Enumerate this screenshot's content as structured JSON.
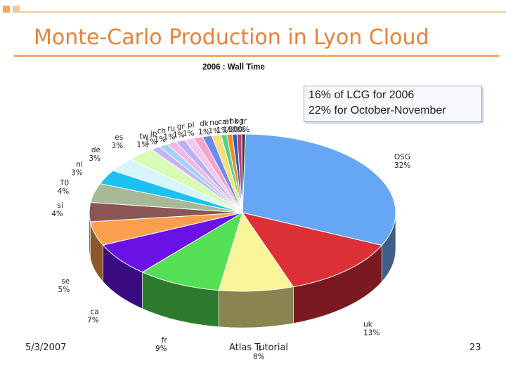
{
  "slide": {
    "title": "Monte-Carlo Production in Lyon Cloud",
    "callout_lines": [
      "16% of LCG for 2006",
      "22% for October-November"
    ],
    "footer": {
      "date": "5/3/2007",
      "center": "Atlas Tutorial",
      "page": "23"
    },
    "accent_color": "#e8823a"
  },
  "chart_data": {
    "type": "pie",
    "title": "2006 : Wall Time",
    "legend": "none",
    "slices": [
      {
        "label": "OSG",
        "value": 32,
        "pct": "32%",
        "color": "#65a7f5",
        "side": "#3f5d86"
      },
      {
        "label": "uk",
        "value": 13,
        "pct": "13%",
        "color": "#dd2f36",
        "side": "#7a1a20"
      },
      {
        "label": "it",
        "value": 8,
        "pct": "8%",
        "color": "#fbf59a",
        "side": "#8a8450"
      },
      {
        "label": "fr",
        "value": 9,
        "pct": "9%",
        "color": "#54e055",
        "side": "#2c7a2c"
      },
      {
        "label": "ca",
        "value": 7,
        "pct": "7%",
        "color": "#6a12e6",
        "side": "#3a0a80"
      },
      {
        "label": "se",
        "value": 5,
        "pct": "5%",
        "color": "#fb9f4e",
        "side": "#8c582a"
      },
      {
        "label": "si",
        "value": 4,
        "pct": "4%",
        "color": "#8a5656",
        "side": "#4d3030"
      },
      {
        "label": "T0",
        "value": 4,
        "pct": "4%",
        "color": "#a7b996",
        "side": "#5d6853"
      },
      {
        "label": "nl",
        "value": 3,
        "pct": "3%",
        "color": "#1bc1f0",
        "side": "#0f6c86"
      },
      {
        "label": "de",
        "value": 3,
        "pct": "3%",
        "color": "#d6f6fb",
        "side": "#78898c"
      },
      {
        "label": "es",
        "value": 3,
        "pct": "3%",
        "color": "#d9fbb6",
        "side": "#7a8c66"
      },
      {
        "label": "tw",
        "value": 1,
        "pct": "1%",
        "color": "#c7b1fb",
        "side": "#6f638c"
      },
      {
        "label": "jp",
        "value": 1,
        "pct": "1%",
        "color": "#9fd3fb",
        "side": "#59778c"
      },
      {
        "label": "ch",
        "value": 1,
        "pct": "1%",
        "color": "#f6b6e6",
        "side": "#8a6681"
      },
      {
        "label": "ru",
        "value": 1,
        "pct": "1%",
        "color": "#b9b1f6",
        "side": "#67638a"
      },
      {
        "label": "gr",
        "value": 1,
        "pct": "1%",
        "color": "#f2c7f0",
        "side": "#877087"
      },
      {
        "label": "pl",
        "value": 1,
        "pct": "1%",
        "color": "#f8a3c8",
        "side": "#8a5b70"
      },
      {
        "label": "dk",
        "value": 1,
        "pct": "1%",
        "color": "#6e88f2",
        "side": "#3d4c87"
      },
      {
        "label": "no",
        "value": 1,
        "pct": "1%",
        "color": "#f3e07a",
        "side": "#877c44"
      },
      {
        "label": "ca",
        "value": 0.6,
        "pct": "1%",
        "color": "#4dd48c",
        "side": "#2b764e"
      },
      {
        "label": "at",
        "value": 0.6,
        "pct": "1%",
        "color": "#f28b2d",
        "side": "#874e19"
      },
      {
        "label": "hk",
        "value": 0.5,
        "pct": "0%",
        "color": "#2a5fb3",
        "side": "#173564"
      },
      {
        "label": "bg",
        "value": 0.5,
        "pct": "0%",
        "color": "#c23a7a",
        "side": "#6c2044"
      },
      {
        "label": "tr",
        "value": 0.4,
        "pct": "0%",
        "color": "#3b3b3b",
        "side": "#1f1f1f"
      }
    ]
  }
}
